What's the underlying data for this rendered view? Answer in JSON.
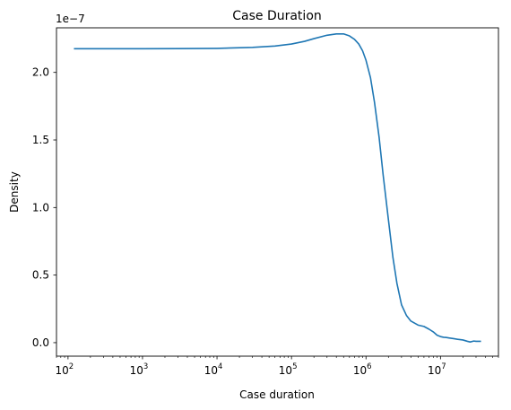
{
  "chart_data": {
    "type": "line",
    "title": "Case Duration",
    "xlabel": "Case duration",
    "ylabel": "Density",
    "x_scale": "log",
    "y_offset_label": "1e−7",
    "xlim": [
      70,
      60000000
    ],
    "ylim": [
      -0.1,
      2.33
    ],
    "x_ticks": [
      {
        "value": 100,
        "base": "10",
        "exp": "2"
      },
      {
        "value": 1000,
        "base": "10",
        "exp": "3"
      },
      {
        "value": 10000,
        "base": "10",
        "exp": "4"
      },
      {
        "value": 100000,
        "base": "10",
        "exp": "5"
      },
      {
        "value": 1000000,
        "base": "10",
        "exp": "6"
      },
      {
        "value": 10000000,
        "base": "10",
        "exp": "7"
      }
    ],
    "y_ticks": [
      {
        "value": 0.0,
        "label": "0.0"
      },
      {
        "value": 0.5,
        "label": "0.5"
      },
      {
        "value": 1.0,
        "label": "1.0"
      },
      {
        "value": 1.5,
        "label": "1.5"
      },
      {
        "value": 2.0,
        "label": "2.0"
      }
    ],
    "grid": false,
    "series": [
      {
        "color": "#1f77b4",
        "x": [
          120,
          200,
          400,
          1000,
          3000,
          10000,
          30000,
          60000,
          100000,
          150000,
          200000,
          300000,
          400000,
          500000,
          600000,
          700000,
          800000,
          900000,
          1000000,
          1150000,
          1300000,
          1500000,
          1700000,
          2000000,
          2300000,
          2600000,
          3000000,
          3500000,
          4000000,
          5000000,
          6000000,
          7000000,
          8000000,
          9000000,
          10000000,
          11000000,
          12000000,
          13000000,
          15000000,
          17000000,
          20000000,
          23000000,
          25000000,
          28000000,
          30000000,
          35000000
        ],
        "y": [
          2.175,
          2.175,
          2.175,
          2.175,
          2.176,
          2.178,
          2.185,
          2.195,
          2.21,
          2.23,
          2.25,
          2.275,
          2.285,
          2.285,
          2.27,
          2.245,
          2.21,
          2.16,
          2.09,
          1.96,
          1.78,
          1.52,
          1.24,
          0.91,
          0.63,
          0.44,
          0.28,
          0.2,
          0.16,
          0.13,
          0.12,
          0.1,
          0.08,
          0.055,
          0.045,
          0.04,
          0.038,
          0.035,
          0.03,
          0.025,
          0.02,
          0.01,
          0.005,
          0.012,
          0.01,
          0.01
        ]
      }
    ]
  }
}
